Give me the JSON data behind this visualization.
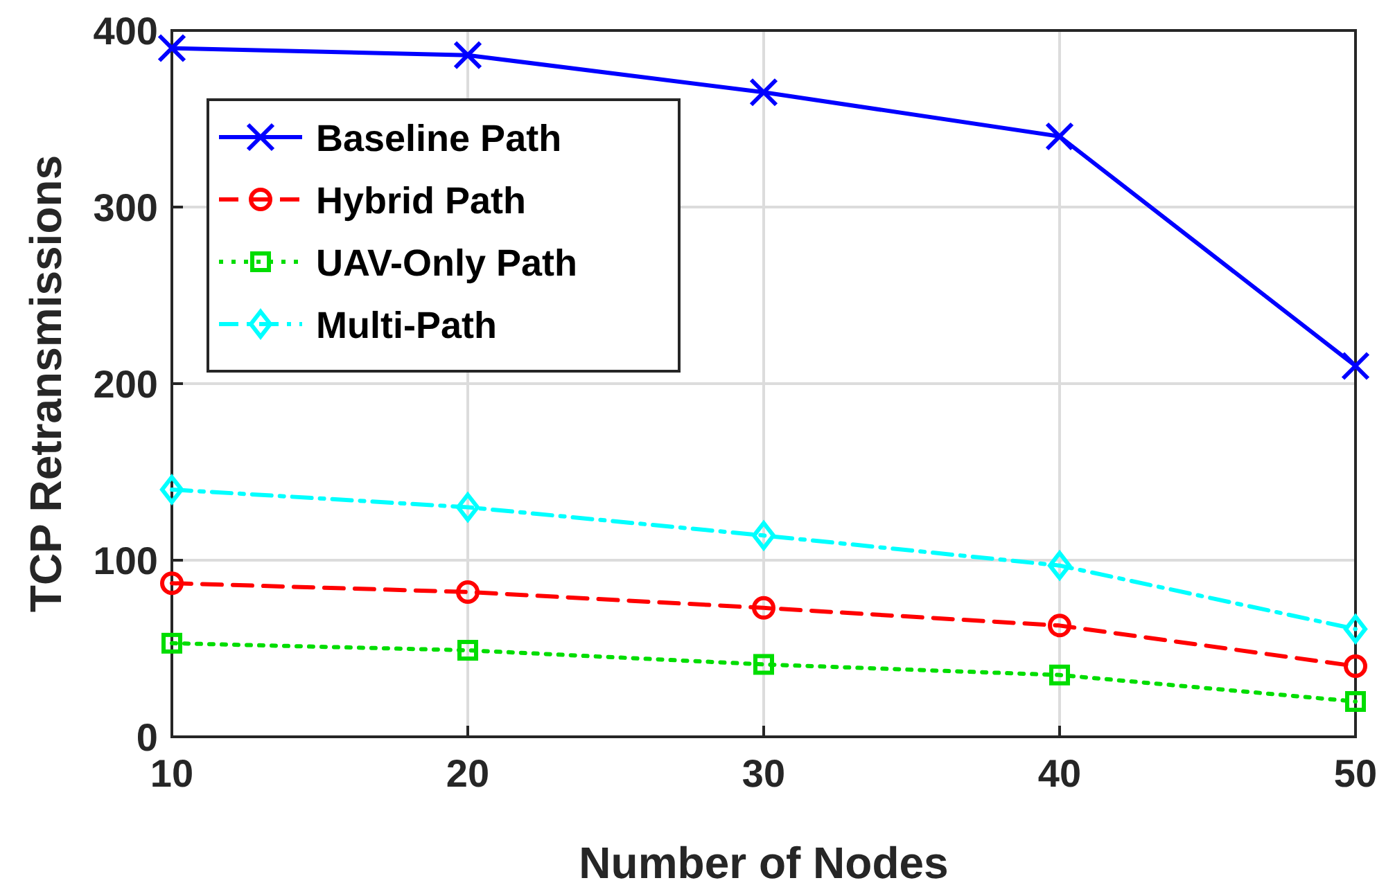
{
  "chart_data": {
    "type": "line",
    "xlabel": "Number of Nodes",
    "ylabel": "TCP Retransmissions",
    "x": [
      10,
      20,
      30,
      40,
      50
    ],
    "xlim": [
      10,
      50
    ],
    "xticks": [
      10,
      20,
      30,
      40,
      50
    ],
    "ylim": [
      0,
      400
    ],
    "yticks": [
      0,
      100,
      200,
      300,
      400
    ],
    "grid": true,
    "legend": "top left",
    "series": [
      {
        "name": "Baseline Path",
        "color": "#0000ff",
        "values": [
          390,
          386,
          365,
          340,
          210
        ],
        "marker": "cross",
        "line_style": "solid"
      },
      {
        "name": "Hybrid Path",
        "color": "#ff0000",
        "values": [
          87,
          82,
          73,
          63,
          40
        ],
        "marker": "circle",
        "line_style": "dashed"
      },
      {
        "name": "UAV-Only Path",
        "color": "#00dd00",
        "values": [
          53,
          49,
          41,
          35,
          20
        ],
        "marker": "square",
        "line_style": "dotted"
      },
      {
        "name": "Multi-Path",
        "color": "#00ffff",
        "values": [
          140,
          130,
          114,
          97,
          61
        ],
        "marker": "diamond",
        "line_style": "dashdot"
      }
    ]
  }
}
